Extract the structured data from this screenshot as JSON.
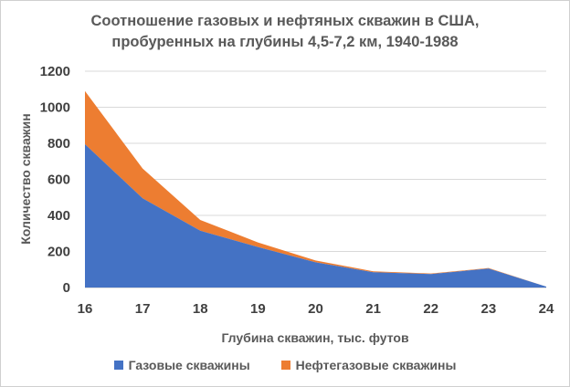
{
  "chart_data": {
    "type": "area",
    "stacked": true,
    "title": [
      "Соотношение  газовых и нефтяных скважин в США,",
      "пробуренных  на глубины 4,5-7,2 км, 1940-1988"
    ],
    "xlabel": "Глубина скважин, тыс. футов",
    "ylabel": "Количество скважин",
    "x": [
      16,
      17,
      18,
      19,
      20,
      21,
      22,
      23,
      24
    ],
    "xticks": [
      "16",
      "17",
      "18",
      "19",
      "20",
      "21",
      "22",
      "23",
      "24"
    ],
    "ylim": [
      0,
      1200
    ],
    "yticks": [
      "0",
      "200",
      "400",
      "600",
      "800",
      "1000",
      "1200"
    ],
    "grid": true,
    "legend_position": "bottom",
    "series": [
      {
        "name": "Газовые скважины",
        "color": "#4472c4",
        "values": [
          795,
          495,
          315,
          225,
          140,
          85,
          75,
          105,
          5
        ]
      },
      {
        "name": "Нефтегазовые скважины",
        "color": "#ed7d31",
        "values": [
          295,
          165,
          60,
          25,
          10,
          5,
          3,
          3,
          0
        ]
      }
    ]
  }
}
